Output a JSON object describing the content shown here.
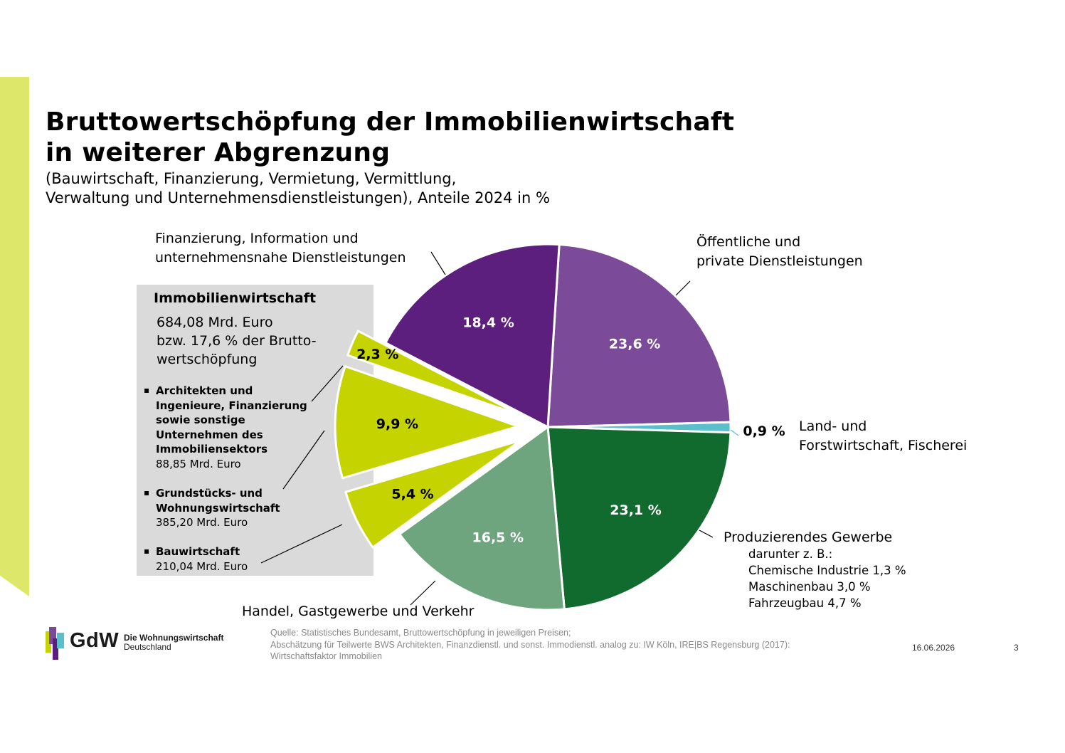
{
  "header": {
    "title_line1": "Bruttowertschöpfung der Immobilienwirtschaft",
    "title_line2": "in weiterer Abgrenzung",
    "subtitle_line1": "(Bauwirtschaft, Finanzierung, Vermietung, Vermittlung,",
    "subtitle_line2": "Verwaltung und Unternehmensdienstleistungen), Anteile 2024 in %"
  },
  "chart_data": {
    "type": "pie",
    "unit": "%",
    "slices": [
      {
        "label": "Öffentliche und private Dienstleistungen",
        "value": 23.6,
        "display": "23,6 %",
        "color": "#7b4a99",
        "label_color": "#ffffff"
      },
      {
        "label": "Land- und Forstwirtschaft, Fischerei",
        "value": 0.9,
        "display": "0,9 %",
        "color": "#5bbfcb",
        "label_color": "#000000"
      },
      {
        "label": "Produzierendes Gewerbe",
        "value": 23.1,
        "display": "23,1 %",
        "color": "#126b2e",
        "label_color": "#ffffff"
      },
      {
        "label": "Handel, Gastgewerbe und Verkehr",
        "value": 16.5,
        "display": "16,5 %",
        "color": "#6fa57e",
        "label_color": "#ffffff"
      },
      {
        "label": "Bauwirtschaft",
        "value": 5.4,
        "display": "5,4 %",
        "color": "#c5d300",
        "label_color": "#000000",
        "exploded": true
      },
      {
        "label": "Grundstücks- und Wohnungswirtschaft",
        "value": 9.9,
        "display": "9,9 %",
        "color": "#c5d300",
        "label_color": "#000000",
        "exploded": true
      },
      {
        "label": "Architekten und Ingenieure, Finanzierung sowie sonstige Unternehmen des Immobiliensektors",
        "value": 2.3,
        "display": "2,3 %",
        "color": "#c5d300",
        "label_color": "#000000",
        "exploded": true
      },
      {
        "label": "Finanzierung, Information und unternehmensnahe Dienstleistungen",
        "value": 18.4,
        "display": "18,4 %",
        "color": "#5c1f7e",
        "label_color": "#ffffff"
      }
    ]
  },
  "labels": {
    "fin_line1": "Finanzierung, Information und",
    "fin_line2": "unternehmensnahe Dienstleistungen",
    "oeff_line1": "Öffentliche und",
    "oeff_line2": "private Dienstleistungen",
    "land_line1": "Land- und",
    "land_line2": "Forstwirtschaft, Fischerei",
    "prod": "Produzierendes Gewerbe",
    "prod_sub1": "darunter z. B.:",
    "prod_sub2": "Chemische Industrie 1,3 %",
    "prod_sub3": "Maschinenbau 3,0 %",
    "prod_sub4": "Fahrzeugbau 4,7 %",
    "handel": "Handel, Gastgewerbe und Verkehr"
  },
  "info_box": {
    "title": "Immobilienwirtschaft",
    "desc_line1": "684,08 Mrd. Euro",
    "desc_line2": "bzw. 17,6 % der Brutto-",
    "desc_line3": "wertschöpfung",
    "bullet": "▪",
    "items": [
      {
        "name_lines": [
          "Architekten und",
          "Ingenieure, Finanzierung",
          "sowie sonstige",
          "Unternehmen des",
          "Immobiliensektors"
        ],
        "value": "88,85 Mrd. Euro"
      },
      {
        "name_lines": [
          "Grundstücks- und",
          "Wohnungswirtschaft"
        ],
        "value": "385,20 Mrd. Euro"
      },
      {
        "name_lines": [
          "Bauwirtschaft"
        ],
        "value": "210,04 Mrd. Euro"
      }
    ]
  },
  "footer": {
    "logo_text": "GdW",
    "logo_sub1": "Die Wohnungswirtschaft",
    "logo_sub2": "Deutschland",
    "source_line1": "Quelle: Statistisches Bundesamt, Bruttowertschöpfung in jeweiligen Preisen;",
    "source_line2": "Abschätzung für Teilwerte BWS Architekten, Finanzdienstl. und sonst. Immodienstl. analog zu: IW Köln, IRE|BS Regensburg (2017):",
    "source_line3": "Wirtschaftsfaktor Immobilien",
    "date": "16.06.2026",
    "page": "3"
  }
}
